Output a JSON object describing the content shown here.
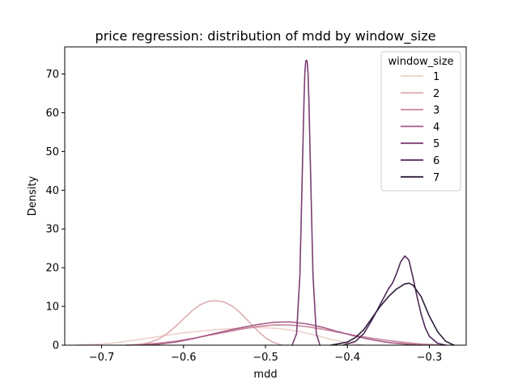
{
  "chart_data": {
    "type": "line",
    "title": "price regression: distribution of mdd by window_size",
    "xlabel": "mdd",
    "ylabel": "Density",
    "xlim": [
      -0.745,
      -0.255
    ],
    "ylim": [
      0,
      77
    ],
    "x_ticks": [
      -0.7,
      -0.6,
      -0.5,
      -0.4,
      -0.3
    ],
    "x_tick_labels": [
      "−0.7",
      "−0.6",
      "−0.5",
      "−0.4",
      "−0.3"
    ],
    "y_ticks": [
      0,
      10,
      20,
      30,
      40,
      50,
      60,
      70
    ],
    "y_tick_labels": [
      "0",
      "10",
      "20",
      "30",
      "40",
      "50",
      "60",
      "70"
    ],
    "grid": false,
    "legend": {
      "title": "window_size",
      "position": "top-right"
    },
    "series": [
      {
        "name": "1",
        "color": "#eed0cc",
        "x": [
          -0.73,
          -0.7,
          -0.68,
          -0.66,
          -0.64,
          -0.62,
          -0.6,
          -0.58,
          -0.56,
          -0.54,
          -0.52,
          -0.5,
          -0.48,
          -0.46,
          -0.44,
          -0.42,
          -0.4,
          -0.38
        ],
        "y": [
          0.0,
          0.3,
          0.7,
          1.3,
          1.9,
          2.6,
          3.2,
          3.6,
          4.0,
          4.3,
          4.5,
          4.5,
          4.2,
          3.6,
          2.6,
          1.5,
          0.6,
          0.0
        ]
      },
      {
        "name": "2",
        "color": "#ddaeb1",
        "x": [
          -0.665,
          -0.65,
          -0.64,
          -0.63,
          -0.62,
          -0.61,
          -0.6,
          -0.59,
          -0.58,
          -0.57,
          -0.56,
          -0.55,
          -0.54,
          -0.53,
          -0.52,
          -0.51,
          -0.5,
          -0.49,
          -0.48
        ],
        "y": [
          0.0,
          0.3,
          0.8,
          1.6,
          3.0,
          4.8,
          6.8,
          8.8,
          10.4,
          11.3,
          11.5,
          11.1,
          10.0,
          8.2,
          6.0,
          3.8,
          1.9,
          0.7,
          0.0
        ]
      },
      {
        "name": "3",
        "color": "#c9859a",
        "x": [
          -0.67,
          -0.65,
          -0.63,
          -0.61,
          -0.59,
          -0.57,
          -0.55,
          -0.53,
          -0.51,
          -0.49,
          -0.47,
          -0.45,
          -0.43,
          -0.41,
          -0.39,
          -0.37,
          -0.35,
          -0.33,
          -0.31,
          -0.29,
          -0.28
        ],
        "y": [
          0.0,
          0.2,
          0.5,
          1.0,
          1.7,
          2.5,
          3.3,
          4.1,
          4.8,
          5.2,
          5.2,
          4.8,
          4.1,
          3.3,
          2.5,
          1.8,
          1.2,
          0.7,
          0.3,
          0.1,
          0.0
        ]
      },
      {
        "name": "4",
        "color": "#a75c86",
        "x": [
          -0.65,
          -0.63,
          -0.61,
          -0.59,
          -0.57,
          -0.55,
          -0.53,
          -0.51,
          -0.49,
          -0.47,
          -0.45,
          -0.43,
          -0.41,
          -0.39,
          -0.37,
          -0.35,
          -0.33,
          -0.31
        ],
        "y": [
          0.0,
          0.3,
          0.8,
          1.6,
          2.6,
          3.6,
          4.5,
          5.3,
          5.9,
          6.0,
          5.5,
          4.6,
          3.4,
          2.3,
          1.4,
          0.7,
          0.3,
          0.0
        ]
      },
      {
        "name": "5",
        "color": "#7b3e73",
        "x": [
          -0.4675,
          -0.462,
          -0.458,
          -0.455,
          -0.453,
          -0.452,
          -0.451,
          -0.4505,
          -0.4495,
          -0.449,
          -0.448,
          -0.447,
          -0.445,
          -0.442,
          -0.438,
          -0.4335
        ],
        "y": [
          0.0,
          3.0,
          18.0,
          45.0,
          63.0,
          70.0,
          73.0,
          73.5,
          73.5,
          73.0,
          70.0,
          63.0,
          45.0,
          18.0,
          3.0,
          0.0
        ]
      },
      {
        "name": "6",
        "color": "#4f2a58",
        "x": [
          -0.405,
          -0.39,
          -0.38,
          -0.37,
          -0.36,
          -0.355,
          -0.35,
          -0.345,
          -0.34,
          -0.335,
          -0.33,
          -0.325,
          -0.32,
          -0.315,
          -0.31,
          -0.305,
          -0.3,
          -0.29,
          -0.28
        ],
        "y": [
          0.0,
          1.0,
          3.0,
          6.5,
          10.5,
          12.5,
          14.5,
          16.0,
          18.5,
          21.5,
          23.0,
          22.0,
          17.5,
          12.5,
          8.0,
          4.5,
          2.3,
          0.5,
          0.0
        ]
      },
      {
        "name": "7",
        "color": "#2e1e3b",
        "x": [
          -0.42,
          -0.4,
          -0.39,
          -0.38,
          -0.37,
          -0.36,
          -0.35,
          -0.34,
          -0.33,
          -0.325,
          -0.32,
          -0.31,
          -0.3,
          -0.29,
          -0.28,
          -0.27
        ],
        "y": [
          0.0,
          0.8,
          2.0,
          4.0,
          7.0,
          10.0,
          12.5,
          14.5,
          15.8,
          16.0,
          15.5,
          12.5,
          7.5,
          3.5,
          1.0,
          0.0
        ]
      }
    ]
  }
}
